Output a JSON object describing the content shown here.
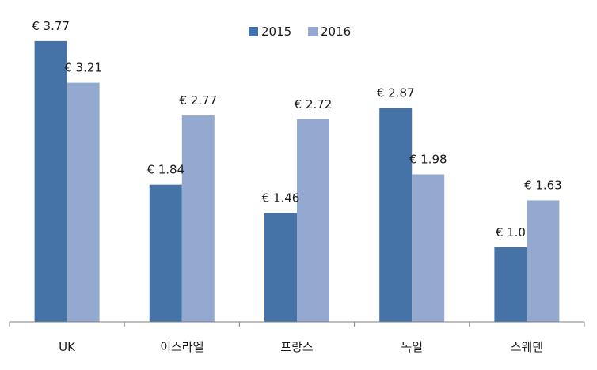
{
  "colors": {
    "series_2015": "#4572a7",
    "series_2016": "#93a9cf",
    "axis": "#808080"
  },
  "chart_data": {
    "type": "bar",
    "categories": [
      "UK",
      "이스라엘",
      "프랑스",
      "독일",
      "스웨덴"
    ],
    "series": [
      {
        "name": "2015",
        "values": [
          3.77,
          1.84,
          1.46,
          2.87,
          1.0
        ],
        "labels": [
          "€ 3.77",
          "€ 1.84",
          "€ 1.46",
          "€ 2.87",
          "€ 1.0"
        ]
      },
      {
        "name": "2016",
        "values": [
          3.21,
          2.77,
          2.72,
          1.98,
          1.63
        ],
        "labels": [
          "€ 3.21",
          "€ 2.77",
          "€ 2.72",
          "€ 1.98",
          "€ 1.63"
        ]
      }
    ],
    "ylim": [
      0,
      4
    ],
    "grid": false,
    "legend": "top-right",
    "value_axis_visible": false
  }
}
